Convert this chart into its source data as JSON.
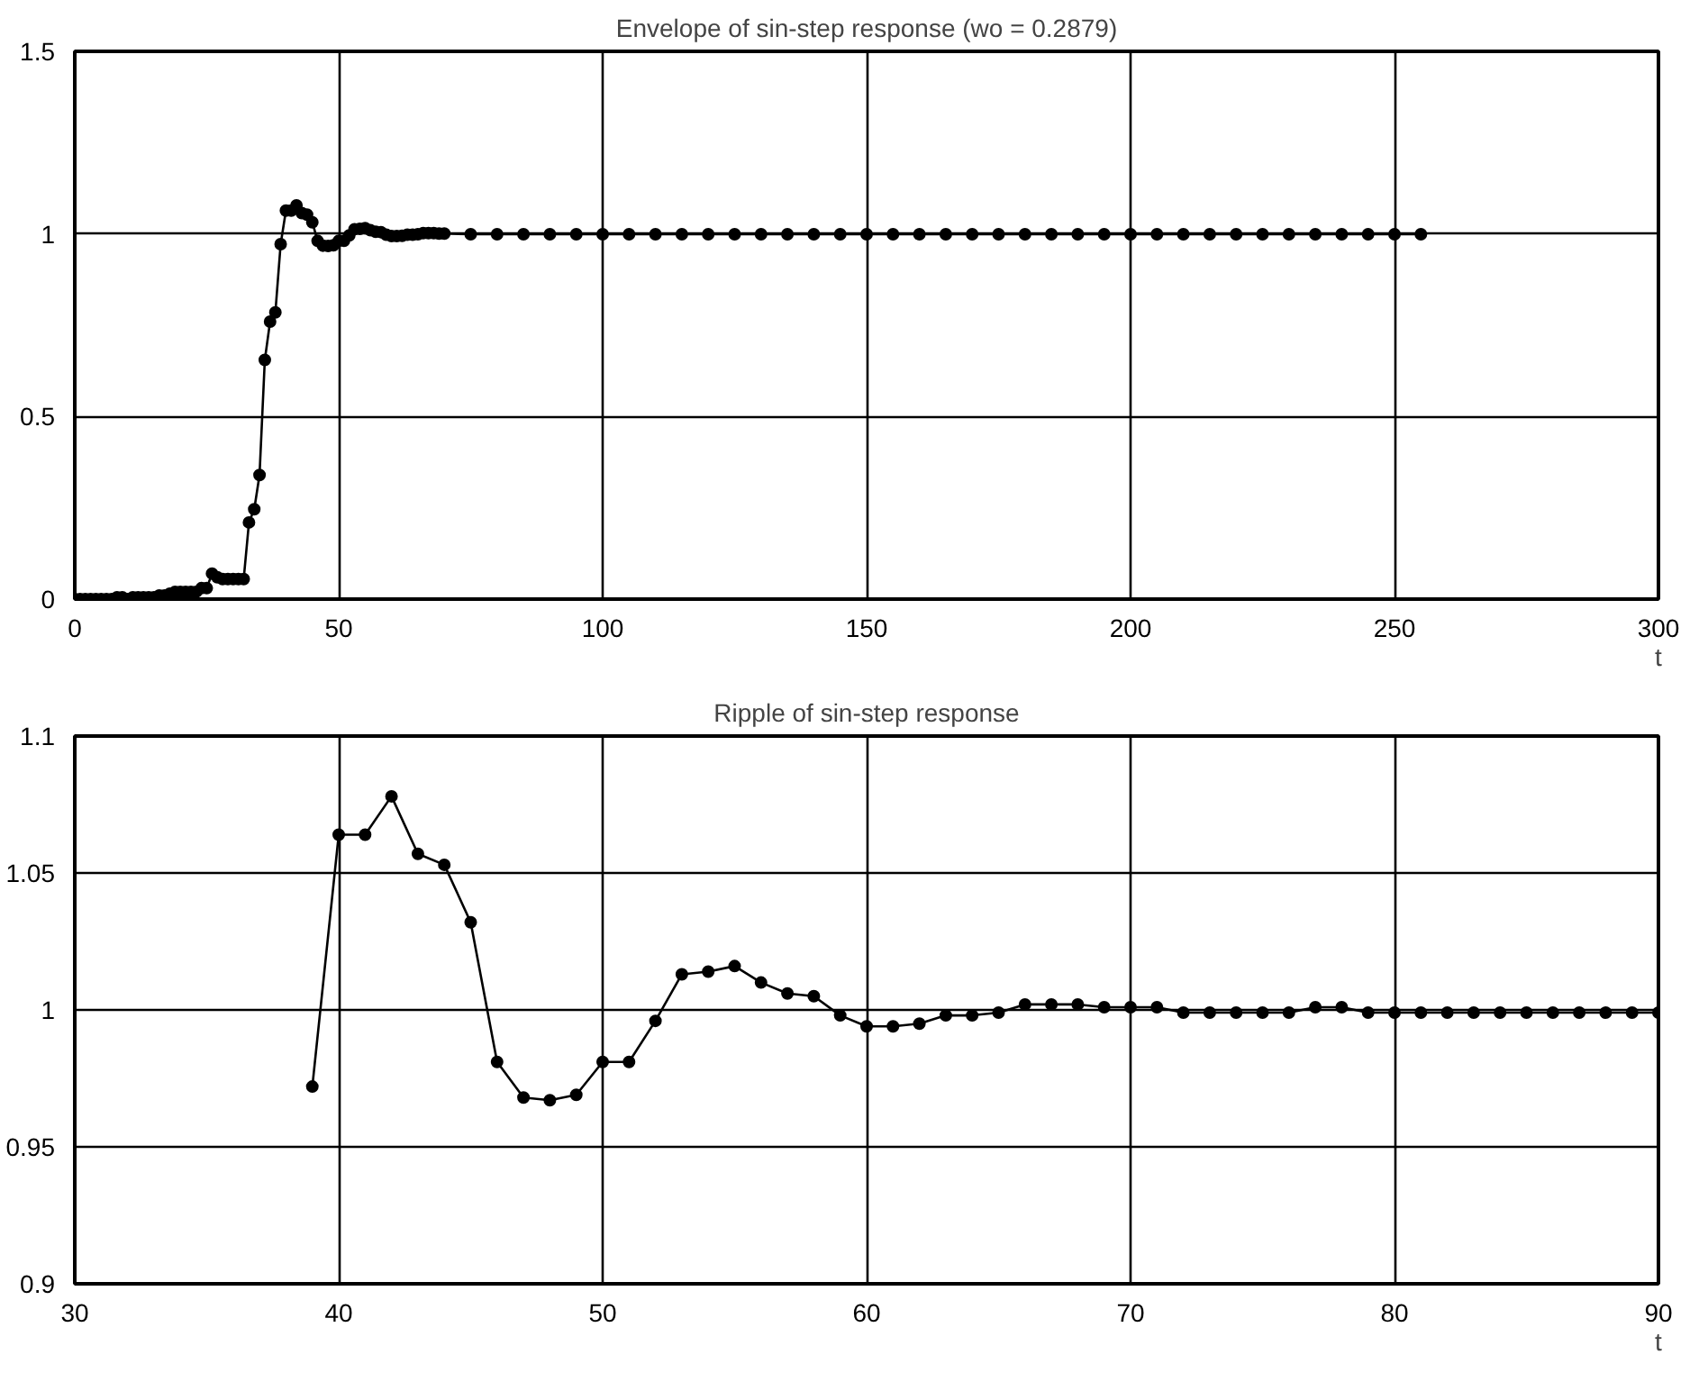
{
  "chart_data": [
    {
      "type": "line",
      "title": "Envelope of sin-step response (wo = 0.2879)",
      "xlabel": "t",
      "xlim": [
        0,
        300
      ],
      "ylim": [
        0,
        1.5
      ],
      "xticks": [
        0,
        50,
        100,
        150,
        200,
        250,
        300
      ],
      "yticks": [
        0,
        0.5,
        1,
        1.5
      ],
      "grid": true,
      "marker": "circle",
      "line_style": "solid",
      "series": [
        {
          "color": "#000000",
          "x": [
            0,
            1,
            2,
            3,
            4,
            5,
            6,
            7,
            8,
            9,
            10,
            11,
            12,
            13,
            14,
            15,
            16,
            17,
            18,
            19,
            20,
            21,
            22,
            23,
            24,
            25,
            26,
            27,
            28,
            29,
            30,
            31,
            32,
            33,
            34,
            35,
            36,
            37,
            38,
            39,
            40,
            41,
            42,
            43,
            44,
            45,
            46,
            47,
            48,
            49,
            50,
            51,
            52,
            53,
            54,
            55,
            56,
            57,
            58,
            59,
            60,
            61,
            62,
            63,
            64,
            65,
            66,
            67,
            68,
            69,
            70,
            75,
            80,
            85,
            90,
            95,
            100,
            105,
            110,
            115,
            120,
            125,
            130,
            135,
            140,
            145,
            150,
            155,
            160,
            165,
            170,
            175,
            180,
            185,
            190,
            195,
            200,
            205,
            210,
            215,
            220,
            225,
            230,
            235,
            240,
            245,
            250,
            255
          ],
          "values": [
            0,
            0,
            0,
            0,
            0,
            0,
            0,
            0,
            0.005,
            0.005,
            0,
            0.005,
            0.005,
            0.005,
            0.005,
            0.005,
            0.01,
            0.01,
            0.015,
            0.02,
            0.02,
            0.02,
            0.02,
            0.02,
            0.03,
            0.03,
            0.07,
            0.06,
            0.055,
            0.055,
            0.055,
            0.055,
            0.055,
            0.21,
            0.246,
            0.34,
            0.655,
            0.76,
            0.785,
            0.972,
            1.064,
            1.064,
            1.078,
            1.057,
            1.053,
            1.032,
            0.981,
            0.968,
            0.967,
            0.969,
            0.981,
            0.981,
            0.996,
            1.013,
            1.014,
            1.016,
            1.01,
            1.006,
            1.005,
            0.998,
            0.994,
            0.994,
            0.995,
            0.998,
            0.998,
            0.999,
            1.002,
            1.002,
            1.002,
            1.001,
            1.001,
            0.999,
            0.999,
            0.999,
            0.999,
            0.999,
            0.999,
            0.999,
            0.999,
            0.999,
            0.999,
            0.999,
            0.999,
            0.999,
            0.999,
            0.999,
            0.999,
            0.999,
            0.999,
            0.999,
            0.999,
            0.999,
            0.999,
            0.999,
            0.999,
            0.999,
            0.999,
            0.999,
            0.999,
            0.999,
            0.999,
            0.999,
            0.999,
            0.999,
            0.999,
            0.999,
            0.999,
            0.999
          ]
        }
      ]
    },
    {
      "type": "line",
      "title": "Ripple of sin-step response",
      "xlabel": "t",
      "xlim": [
        30,
        90
      ],
      "ylim": [
        0.9,
        1.1
      ],
      "xticks": [
        30,
        40,
        50,
        60,
        70,
        80,
        90
      ],
      "yticks": [
        0.9,
        0.95,
        1,
        1.05,
        1.1
      ],
      "grid": true,
      "marker": "circle",
      "line_style": "solid",
      "series": [
        {
          "color": "#000000",
          "x": [
            39,
            40,
            41,
            42,
            43,
            44,
            45,
            46,
            47,
            48,
            49,
            50,
            51,
            52,
            53,
            54,
            55,
            56,
            57,
            58,
            59,
            60,
            61,
            62,
            63,
            64,
            65,
            66,
            67,
            68,
            69,
            70,
            71,
            72,
            73,
            74,
            75,
            76,
            77,
            78,
            79,
            80,
            81,
            82,
            83,
            84,
            85,
            86,
            87,
            88,
            89,
            90
          ],
          "values": [
            0.972,
            1.064,
            1.064,
            1.078,
            1.057,
            1.053,
            1.032,
            0.981,
            0.968,
            0.967,
            0.969,
            0.981,
            0.981,
            0.996,
            1.013,
            1.014,
            1.016,
            1.01,
            1.006,
            1.005,
            0.998,
            0.994,
            0.994,
            0.995,
            0.998,
            0.998,
            0.999,
            1.002,
            1.002,
            1.002,
            1.001,
            1.001,
            1.001,
            0.999,
            0.999,
            0.999,
            0.999,
            0.999,
            1.001,
            1.001,
            0.999,
            0.999,
            0.999,
            0.999,
            0.999,
            0.999,
            0.999,
            0.999,
            0.999,
            0.999,
            0.999,
            0.999
          ]
        }
      ]
    }
  ]
}
